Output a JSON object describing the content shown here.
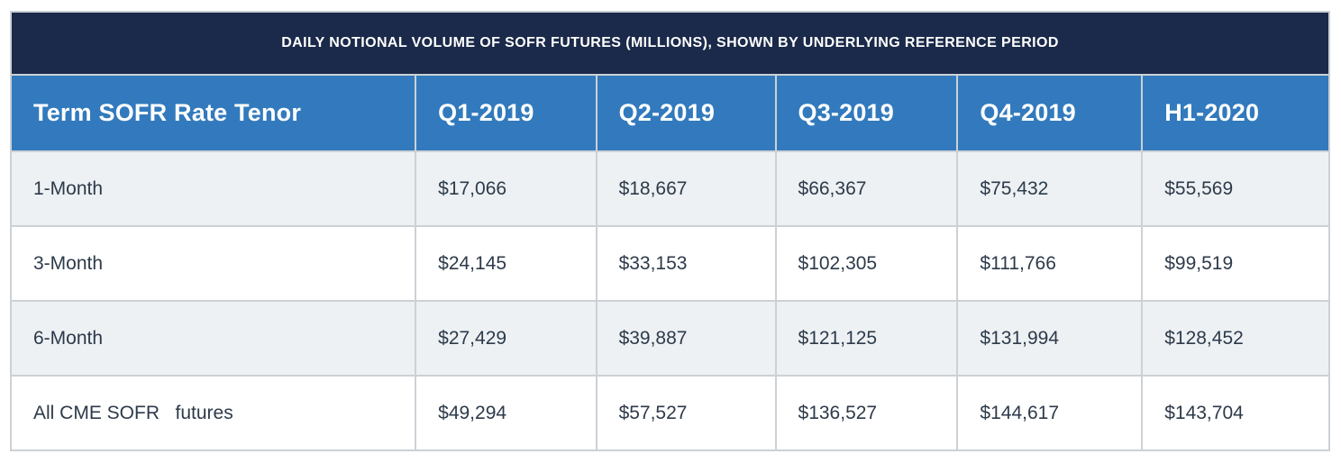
{
  "table": {
    "title": "DAILY NOTIONAL VOLUME OF SOFR FUTURES (MILLIONS), SHOWN BY UNDERLYING REFERENCE PERIOD",
    "columns": [
      "Term SOFR Rate Tenor",
      "Q1-2019",
      "Q2-2019",
      "Q3-2019",
      "Q4-2019",
      "H1-2020"
    ],
    "rows": [
      {
        "label": "1-Month",
        "values": [
          "$17,066",
          "$18,667",
          "$66,367",
          "$75,432",
          "$55,569"
        ]
      },
      {
        "label": "3-Month",
        "values": [
          "$24,145",
          "$33,153",
          "$102,305",
          "$111,766",
          "$99,519"
        ]
      },
      {
        "label": "6-Month",
        "values": [
          "$27,429",
          "$39,887",
          "$121,125",
          "$131,994",
          "$128,452"
        ]
      },
      {
        "label": "All CME SOFR   futures",
        "values": [
          "$49,294",
          "$57,527",
          "$136,527",
          "$144,617",
          "$143,704"
        ]
      }
    ]
  },
  "colors": {
    "title_bg": "#1b2a4a",
    "header_bg": "#327abd",
    "row_alt_bg": "#edf1f4",
    "row_bg": "#ffffff",
    "border": "#ccd1d6",
    "text": "#2d3a49",
    "header_text": "#ffffff"
  },
  "chart_data": {
    "type": "table",
    "title": "DAILY NOTIONAL VOLUME OF SOFR FUTURES (MILLIONS), SHOWN BY UNDERLYING REFERENCE PERIOD",
    "columns": [
      "Term SOFR Rate Tenor",
      "Q1-2019",
      "Q2-2019",
      "Q3-2019",
      "Q4-2019",
      "H1-2020"
    ],
    "rows": [
      [
        "1-Month",
        "$17,066",
        "$18,667",
        "$66,367",
        "$75,432",
        "$55,569"
      ],
      [
        "3-Month",
        "$24,145",
        "$33,153",
        "$102,305",
        "$111,766",
        "$99,519"
      ],
      [
        "6-Month",
        "$27,429",
        "$39,887",
        "$121,125",
        "$131,994",
        "$128,452"
      ],
      [
        "All CME SOFR futures",
        "$49,294",
        "$57,527",
        "$136,527",
        "$144,617",
        "$143,704"
      ]
    ],
    "units": "USD millions, daily notional volume",
    "layout": {
      "title_position": "top",
      "first_column_is_label": true,
      "striped_rows": true
    }
  }
}
